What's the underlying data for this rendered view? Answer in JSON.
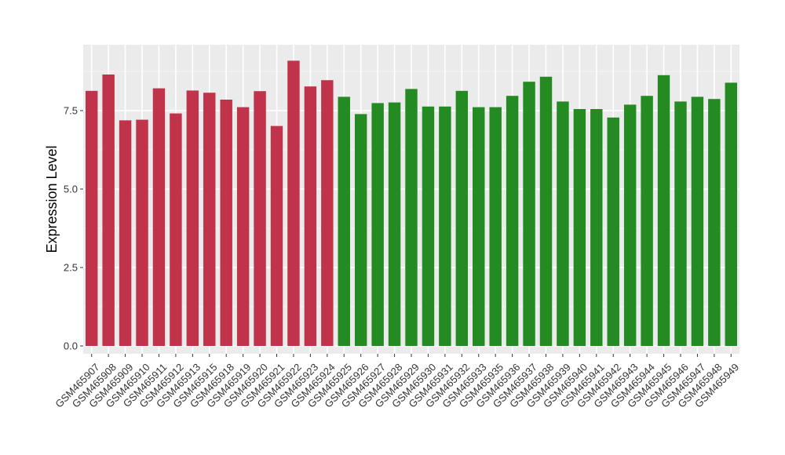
{
  "colors": {
    "panel_background": "#ebebeb",
    "grid_major": "#ffffff",
    "grid_minor": "#f5f5f5",
    "group_a": "#c0334a",
    "group_b": "#238b22"
  },
  "chart_data": {
    "type": "bar",
    "title": "",
    "xlabel": "",
    "ylabel": "Expression Level",
    "ylim": [
      -0.25,
      9.6
    ],
    "yticks": [
      0.0,
      2.5,
      5.0,
      7.5
    ],
    "ytick_labels": [
      "0.0",
      "2.5",
      "5.0",
      "7.5"
    ],
    "grid": true,
    "legend": "none",
    "x_tick_rotation_deg": 45,
    "categories": [
      "GSM465907",
      "GSM465908",
      "GSM465909",
      "GSM465910",
      "GSM465911",
      "GSM465912",
      "GSM465913",
      "GSM465915",
      "GSM465918",
      "GSM465919",
      "GSM465920",
      "GSM465921",
      "GSM465922",
      "GSM465923",
      "GSM465924",
      "GSM465925",
      "GSM465926",
      "GSM465927",
      "GSM465928",
      "GSM465929",
      "GSM465930",
      "GSM465931",
      "GSM465932",
      "GSM465933",
      "GSM465935",
      "GSM465936",
      "GSM465937",
      "GSM465938",
      "GSM465939",
      "GSM465940",
      "GSM465941",
      "GSM465942",
      "GSM465943",
      "GSM465944",
      "GSM465945",
      "GSM465946",
      "GSM465947",
      "GSM465948",
      "GSM465949"
    ],
    "values": [
      8.13,
      8.65,
      7.19,
      7.21,
      8.21,
      7.41,
      8.14,
      8.07,
      7.85,
      7.61,
      8.12,
      7.01,
      9.09,
      8.27,
      8.47,
      7.94,
      7.39,
      7.74,
      7.76,
      8.19,
      7.63,
      7.63,
      8.13,
      7.61,
      7.61,
      7.97,
      8.42,
      8.58,
      7.79,
      7.55,
      7.55,
      7.28,
      7.69,
      7.97,
      8.63,
      7.79,
      7.94,
      7.87,
      8.39
    ],
    "groups": [
      "a",
      "a",
      "a",
      "a",
      "a",
      "a",
      "a",
      "a",
      "a",
      "a",
      "a",
      "a",
      "a",
      "a",
      "a",
      "b",
      "b",
      "b",
      "b",
      "b",
      "b",
      "b",
      "b",
      "b",
      "b",
      "b",
      "b",
      "b",
      "b",
      "b",
      "b",
      "b",
      "b",
      "b",
      "b",
      "b",
      "b",
      "b",
      "b"
    ]
  }
}
